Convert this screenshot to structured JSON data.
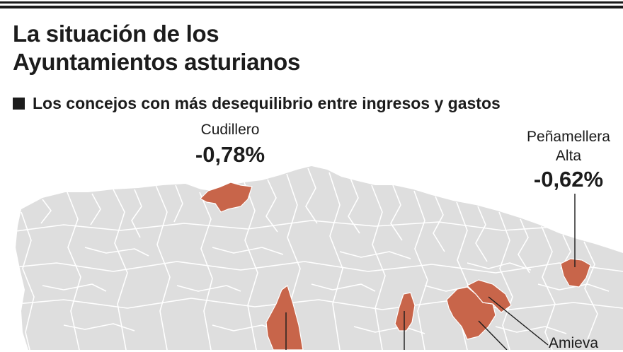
{
  "title_lines": [
    "La situación de los",
    "Ayuntamientos asturianos"
  ],
  "subtitle": "Los concejos con más desequilibrio entre ingresos y gastos",
  "colors": {
    "highlight": "#c8654a",
    "land": "#dedede",
    "border": "#ffffff",
    "text": "#1c1c1c"
  },
  "labels": {
    "cudillero": {
      "name": "Cudillero",
      "value": "-0,78%"
    },
    "penamellera": {
      "name_line1": "Peñamellera",
      "name_line2": "Alta",
      "value": "-0,62%"
    },
    "amieva": {
      "name": "Amieva"
    }
  }
}
